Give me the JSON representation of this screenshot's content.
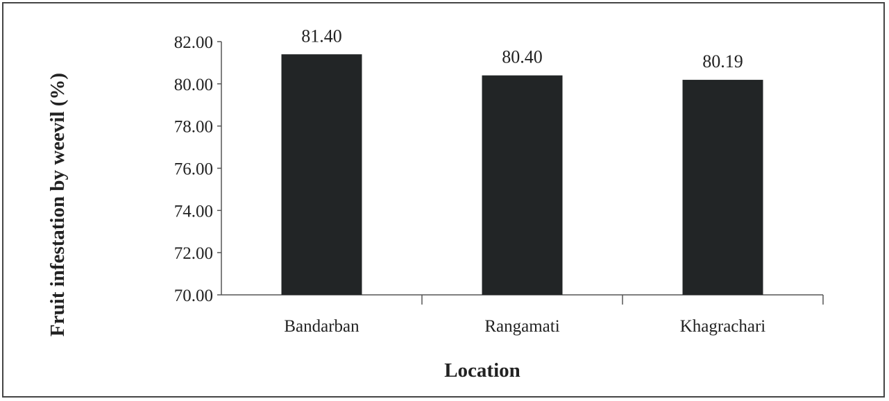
{
  "chart_data": {
    "type": "bar",
    "categories": [
      "Bandarban",
      "Rangamati",
      "Khagrachari"
    ],
    "values": [
      81.4,
      80.4,
      80.19
    ],
    "value_labels": [
      "81.40",
      "80.40",
      "80.19"
    ],
    "xlabel": "Location",
    "ylabel": "Fruit infestation by weevil (%)",
    "ylim": [
      70,
      82
    ],
    "yticks": [
      70,
      72,
      74,
      76,
      78,
      80,
      82
    ],
    "ytick_labels": [
      "70.00",
      "72.00",
      "74.00",
      "76.00",
      "78.00",
      "80.00",
      "82.00"
    ],
    "grid": false,
    "legend": "none",
    "bar_color": "#222526"
  }
}
